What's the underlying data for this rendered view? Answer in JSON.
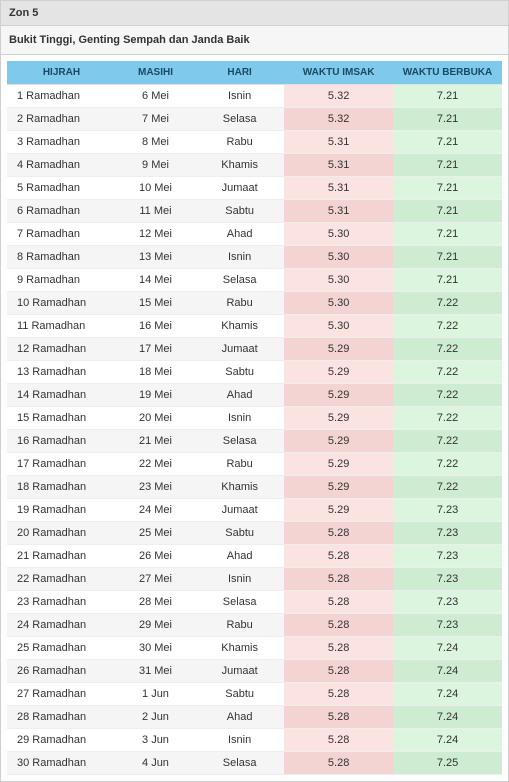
{
  "zone_title": "Zon 5",
  "location_title": "Bukit Tinggi, Genting Sempah dan Janda Baik",
  "table": {
    "type": "table",
    "header_bg": "#7fc9ed",
    "header_fg": "#1a4a63",
    "imsak_bg_odd": "#fbe3e2",
    "imsak_bg_even": "#f4d4d3",
    "berbuka_bg_odd": "#dbf5df",
    "berbuka_bg_even": "#cdecd2",
    "row_bg_odd": "#ffffff",
    "row_bg_even": "#f5f5f5",
    "columns": [
      "HIJRAH",
      "MASIHI",
      "HARI",
      "WAKTU IMSAK",
      "WAKTU BERBUKA"
    ],
    "col_align": [
      "left",
      "center",
      "center",
      "center",
      "center"
    ],
    "rows": [
      [
        "1 Ramadhan",
        "6 Mei",
        "Isnin",
        "5.32",
        "7.21"
      ],
      [
        "2 Ramadhan",
        "7 Mei",
        "Selasa",
        "5.32",
        "7.21"
      ],
      [
        "3 Ramadhan",
        "8 Mei",
        "Rabu",
        "5.31",
        "7.21"
      ],
      [
        "4 Ramadhan",
        "9 Mei",
        "Khamis",
        "5.31",
        "7.21"
      ],
      [
        "5 Ramadhan",
        "10 Mei",
        "Jumaat",
        "5.31",
        "7.21"
      ],
      [
        "6 Ramadhan",
        "11 Mei",
        "Sabtu",
        "5.31",
        "7.21"
      ],
      [
        "7 Ramadhan",
        "12 Mei",
        "Ahad",
        "5.30",
        "7.21"
      ],
      [
        "8 Ramadhan",
        "13 Mei",
        "Isnin",
        "5.30",
        "7.21"
      ],
      [
        "9 Ramadhan",
        "14 Mei",
        "Selasa",
        "5.30",
        "7.21"
      ],
      [
        "10 Ramadhan",
        "15 Mei",
        "Rabu",
        "5.30",
        "7.22"
      ],
      [
        "11 Ramadhan",
        "16 Mei",
        "Khamis",
        "5.30",
        "7.22"
      ],
      [
        "12 Ramadhan",
        "17 Mei",
        "Jumaat",
        "5.29",
        "7.22"
      ],
      [
        "13 Ramadhan",
        "18 Mei",
        "Sabtu",
        "5.29",
        "7.22"
      ],
      [
        "14 Ramadhan",
        "19 Mei",
        "Ahad",
        "5.29",
        "7.22"
      ],
      [
        "15 Ramadhan",
        "20 Mei",
        "Isnin",
        "5.29",
        "7.22"
      ],
      [
        "16 Ramadhan",
        "21 Mei",
        "Selasa",
        "5.29",
        "7.22"
      ],
      [
        "17 Ramadhan",
        "22 Mei",
        "Rabu",
        "5.29",
        "7.22"
      ],
      [
        "18 Ramadhan",
        "23 Mei",
        "Khamis",
        "5.29",
        "7.22"
      ],
      [
        "19 Ramadhan",
        "24 Mei",
        "Jumaat",
        "5.29",
        "7.23"
      ],
      [
        "20 Ramadhan",
        "25 Mei",
        "Sabtu",
        "5.28",
        "7.23"
      ],
      [
        "21 Ramadhan",
        "26 Mei",
        "Ahad",
        "5.28",
        "7.23"
      ],
      [
        "22 Ramadhan",
        "27 Mei",
        "Isnin",
        "5.28",
        "7.23"
      ],
      [
        "23 Ramadhan",
        "28 Mei",
        "Selasa",
        "5.28",
        "7.23"
      ],
      [
        "24 Ramadhan",
        "29 Mei",
        "Rabu",
        "5.28",
        "7.23"
      ],
      [
        "25 Ramadhan",
        "30 Mei",
        "Khamis",
        "5.28",
        "7.24"
      ],
      [
        "26 Ramadhan",
        "31 Mei",
        "Jumaat",
        "5.28",
        "7.24"
      ],
      [
        "27 Ramadhan",
        "1 Jun",
        "Sabtu",
        "5.28",
        "7.24"
      ],
      [
        "28 Ramadhan",
        "2 Jun",
        "Ahad",
        "5.28",
        "7.24"
      ],
      [
        "29 Ramadhan",
        "3 Jun",
        "Isnin",
        "5.28",
        "7.24"
      ],
      [
        "30 Ramadhan",
        "4 Jun",
        "Selasa",
        "5.28",
        "7.25"
      ]
    ]
  }
}
